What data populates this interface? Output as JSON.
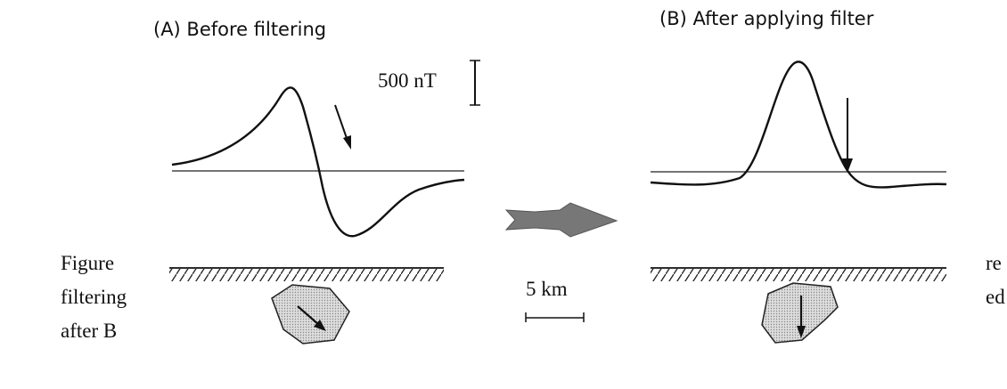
{
  "panels": [
    {
      "title": "(A) Before filtering"
    },
    {
      "title": "(B) After applying filter"
    }
  ],
  "scales": {
    "field": "500 nT",
    "distance": "5 km"
  },
  "caption": {
    "left": [
      "Figure",
      "filtering",
      "after B"
    ],
    "right": [
      "re",
      "ed"
    ]
  }
}
